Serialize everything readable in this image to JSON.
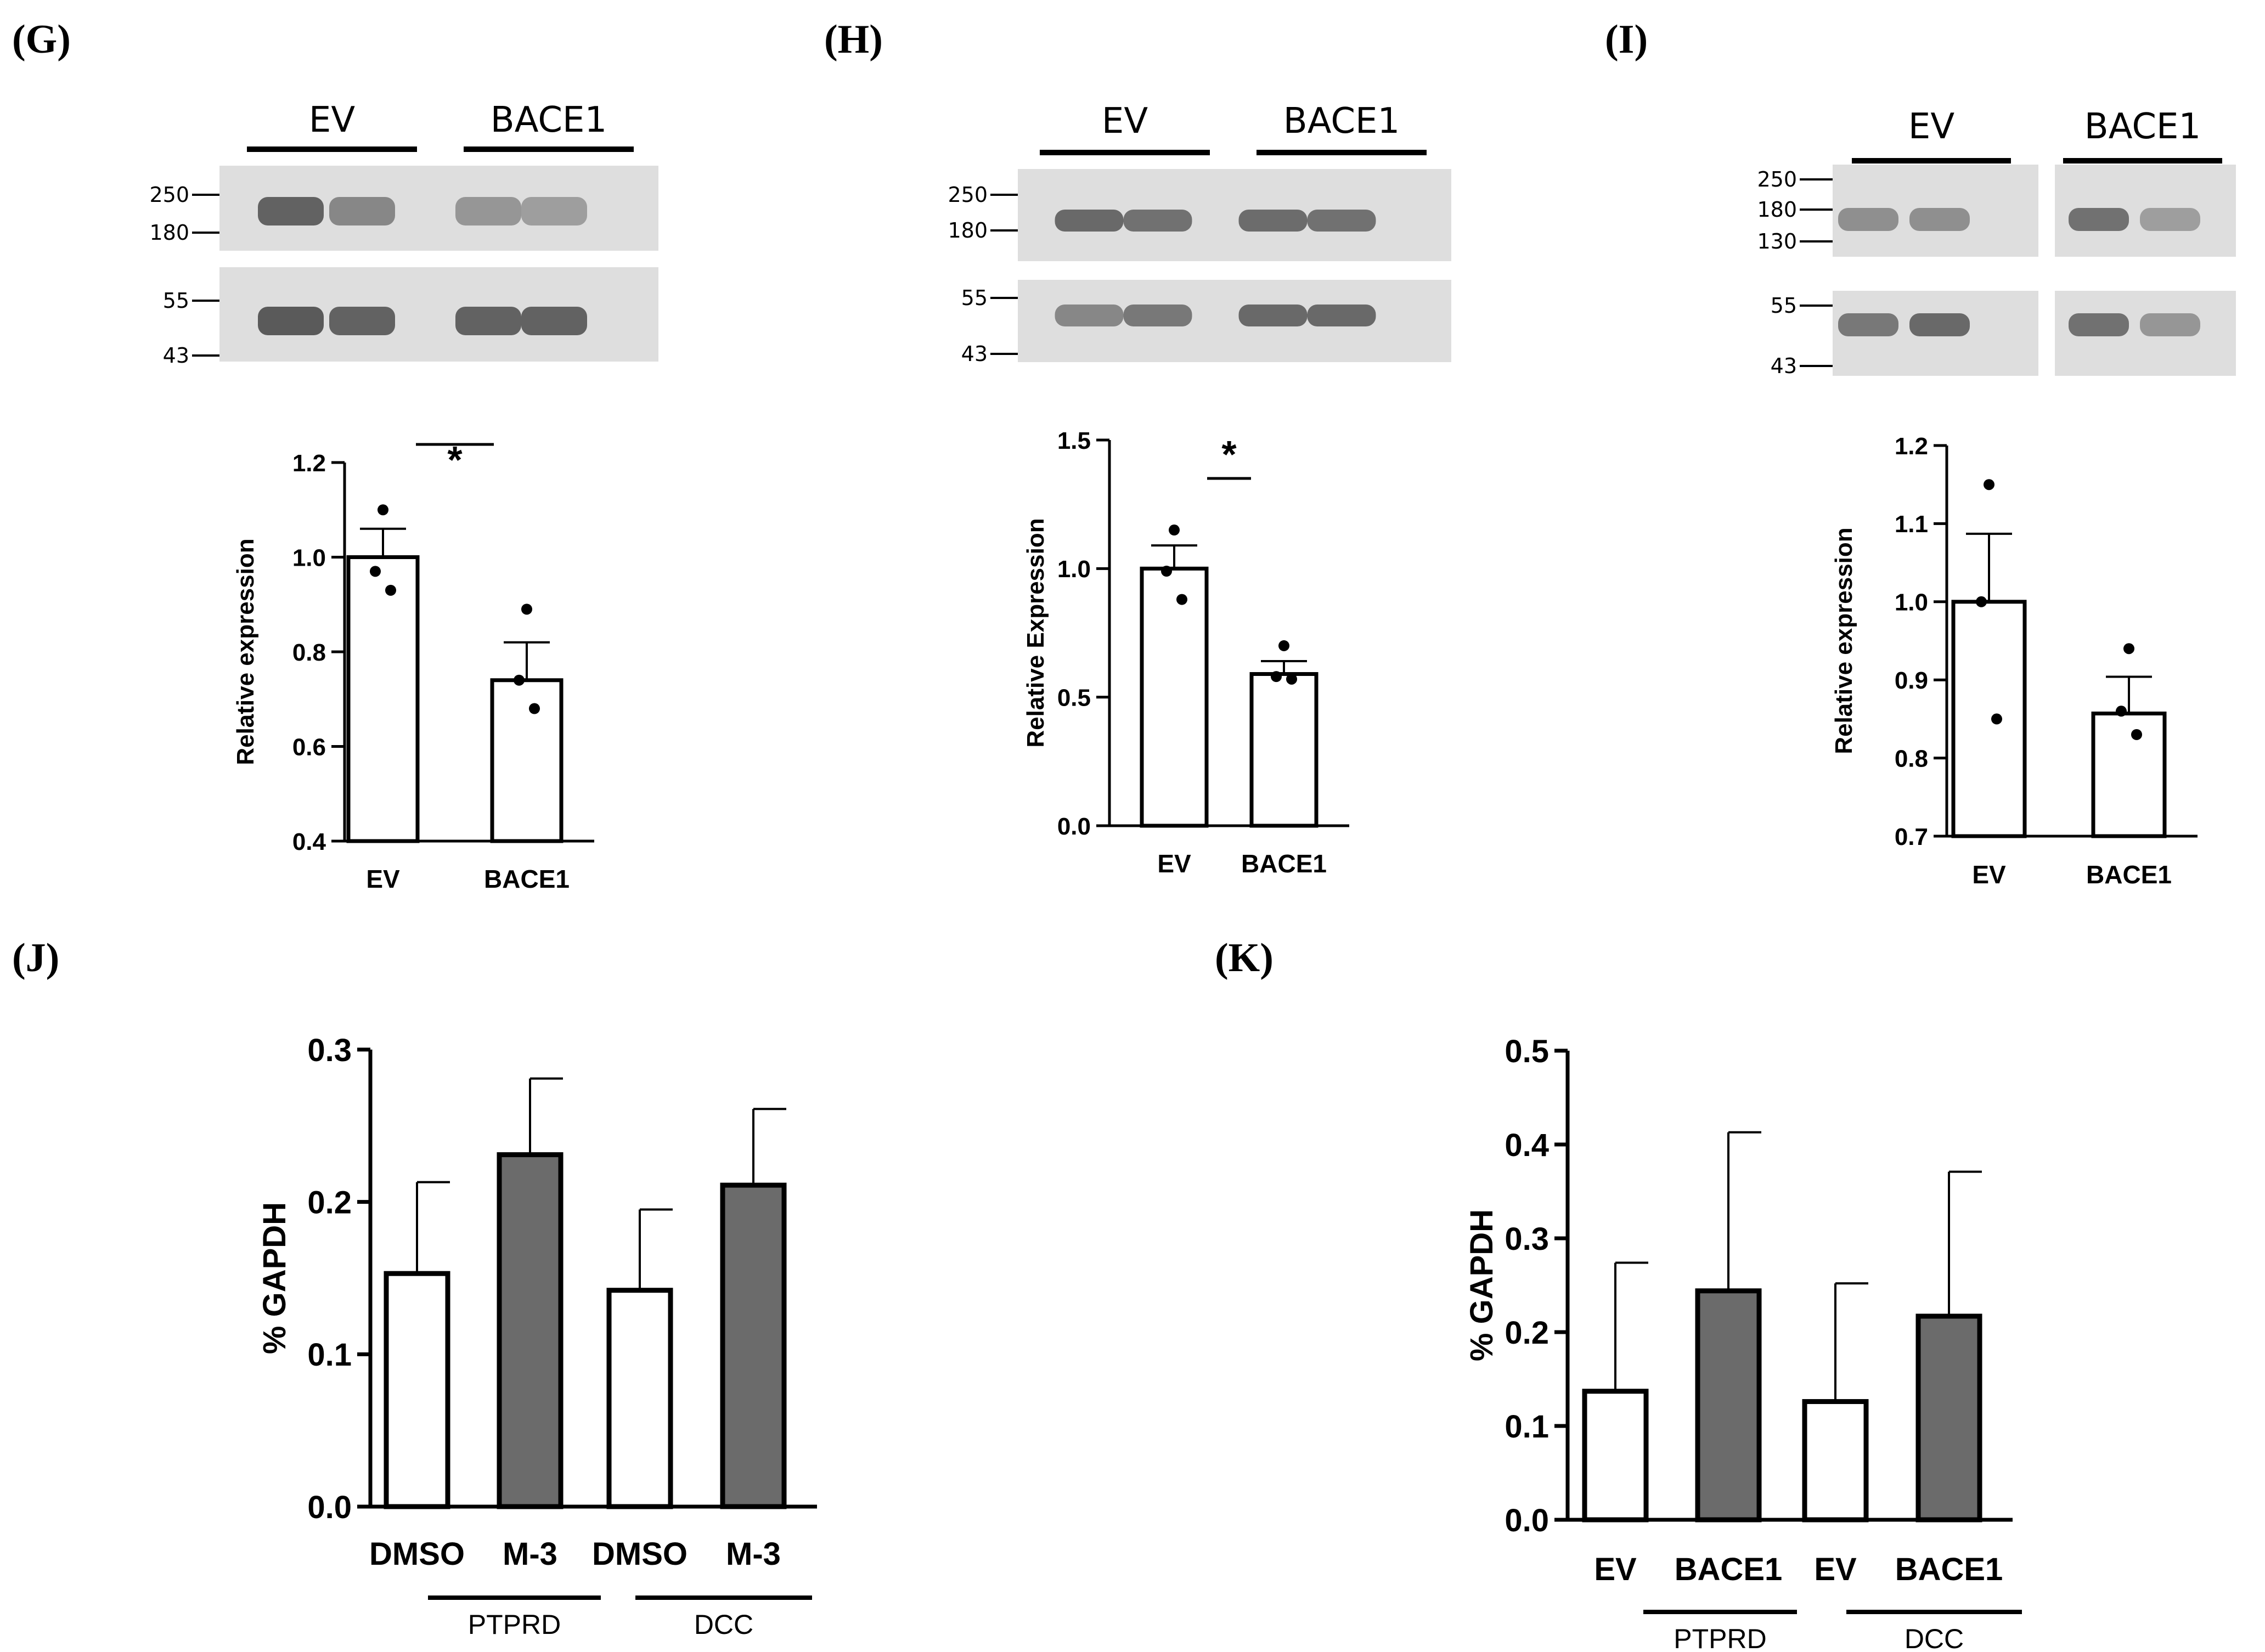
{
  "panels": {
    "G": {
      "label": "(G)",
      "blot": {
        "lanes": [
          "EV",
          "BACE1"
        ],
        "mw_top": [
          "250",
          "180"
        ],
        "mw_bottom": [
          "55",
          "43"
        ],
        "band_intensity_top": [
          0.85,
          0.6,
          0.5,
          0.45
        ],
        "band_intensity_bottom": [
          0.9,
          0.85,
          0.85,
          0.85
        ]
      }
    },
    "H": {
      "label": "(H)",
      "blot": {
        "lanes": [
          "EV",
          "BACE1"
        ],
        "mw_top": [
          "250",
          "180"
        ],
        "mw_bottom": [
          "55",
          "43"
        ],
        "band_intensity_top": [
          0.8,
          0.75,
          0.78,
          0.75
        ],
        "band_intensity_bottom": [
          0.6,
          0.7,
          0.8,
          0.8
        ]
      }
    },
    "I": {
      "label": "(I)",
      "blot": {
        "lanes": [
          "EV",
          "BACE1"
        ],
        "mw_top": [
          "250",
          "180",
          "130"
        ],
        "mw_bottom": [
          "55",
          "43"
        ],
        "band_intensity_top": [
          0.55,
          0.55,
          0.75,
          0.45
        ],
        "band_intensity_bottom": [
          0.7,
          0.8,
          0.75,
          0.5
        ]
      }
    },
    "J": {
      "label": "(J)"
    },
    "K": {
      "label": "(K)"
    }
  },
  "chart_data": [
    {
      "id": "G",
      "type": "bar",
      "categories": [
        "EV",
        "BACE1"
      ],
      "values": [
        1.0,
        0.74
      ],
      "errors": [
        0.06,
        0.08
      ],
      "points": [
        [
          1.1,
          0.97,
          0.93
        ],
        [
          0.89,
          0.74,
          0.68
        ]
      ],
      "ylabel": "Relative expression",
      "ylim": [
        0.4,
        1.2
      ],
      "yticks": [
        "0.4",
        "0.6",
        "0.8",
        "1.0",
        "1.2"
      ],
      "significance": "*",
      "bar_colors": [
        "#ffffff",
        "#ffffff"
      ]
    },
    {
      "id": "H",
      "type": "bar",
      "categories": [
        "EV",
        "BACE1"
      ],
      "values": [
        1.0,
        0.59
      ],
      "errors": [
        0.09,
        0.05
      ],
      "points": [
        [
          1.15,
          0.99,
          0.88
        ],
        [
          0.7,
          0.58,
          0.57
        ]
      ],
      "ylabel": "Relative Expression",
      "ylim": [
        0.0,
        1.5
      ],
      "yticks": [
        "0.0",
        "0.5",
        "1.0",
        "1.5"
      ],
      "significance": "*",
      "bar_colors": [
        "#ffffff",
        "#ffffff"
      ]
    },
    {
      "id": "I",
      "type": "bar",
      "categories": [
        "EV",
        "BACE1"
      ],
      "values": [
        1.0,
        0.857
      ],
      "errors": [
        0.087,
        0.047
      ],
      "points": [
        [
          1.15,
          1.0,
          0.85
        ],
        [
          0.94,
          0.86,
          0.83
        ]
      ],
      "ylabel": "Relative expression",
      "ylim": [
        0.7,
        1.2
      ],
      "yticks": [
        "0.7",
        "0.8",
        "0.9",
        "1.0",
        "1.1",
        "1.2"
      ],
      "significance": "",
      "bar_colors": [
        "#ffffff",
        "#ffffff"
      ]
    },
    {
      "id": "J",
      "type": "bar",
      "categories": [
        "DMSO",
        "M-3",
        "DMSO",
        "M-3"
      ],
      "values": [
        0.153,
        0.231,
        0.142,
        0.211
      ],
      "errors": [
        0.06,
        0.05,
        0.053,
        0.05
      ],
      "groups": [
        "PTPRD",
        "DCC"
      ],
      "ylabel": "% GAPDH",
      "ylim": [
        0.0,
        0.3
      ],
      "yticks": [
        "0.0",
        "0.1",
        "0.2",
        "0.3"
      ],
      "bar_colors": [
        "#ffffff",
        "#6b6b6b",
        "#ffffff",
        "#6b6b6b"
      ]
    },
    {
      "id": "K",
      "type": "bar",
      "categories": [
        "EV",
        "BACE1",
        "EV",
        "BACE1"
      ],
      "values": [
        0.137,
        0.244,
        0.126,
        0.217
      ],
      "errors": [
        0.137,
        0.169,
        0.126,
        0.154
      ],
      "groups": [
        "PTPRD",
        "DCC"
      ],
      "ylabel": "% GAPDH",
      "ylim": [
        0.0,
        0.5
      ],
      "yticks": [
        "0.0",
        "0.1",
        "0.2",
        "0.3",
        "0.4",
        "0.5"
      ],
      "bar_colors": [
        "#ffffff",
        "#6b6b6b",
        "#ffffff",
        "#6b6b6b"
      ]
    }
  ]
}
